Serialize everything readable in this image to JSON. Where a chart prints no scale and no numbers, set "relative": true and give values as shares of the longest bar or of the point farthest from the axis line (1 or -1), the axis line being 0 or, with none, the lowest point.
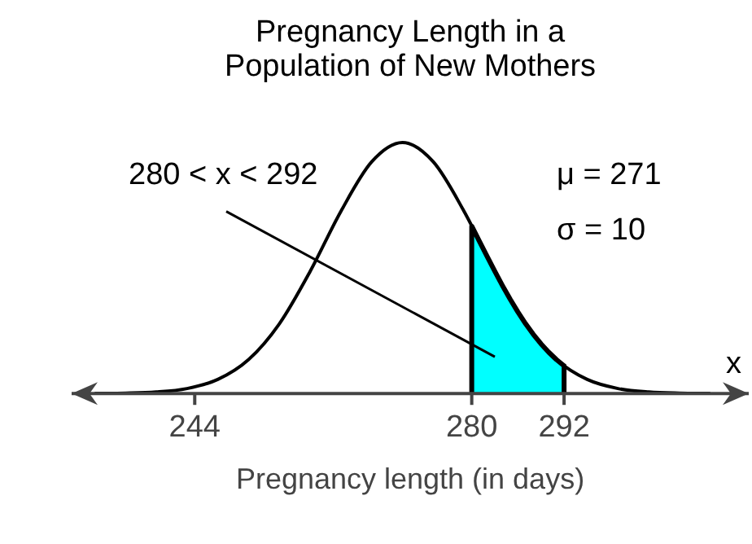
{
  "chart_data": {
    "type": "line",
    "title": [
      "Pregnancy Length in a",
      "Population of New Mothers"
    ],
    "xlabel": "Pregnancy length (in days)",
    "relative": true,
    "xlim": [
      228,
      316
    ],
    "xticks": [
      244,
      280,
      292
    ],
    "grid": false,
    "legend": false,
    "marker": "none",
    "tick_labels": "x",
    "series": [
      {
        "type": "area",
        "color": "#00ffff",
        "x": [
          280,
          281,
          282,
          283,
          284,
          285,
          286,
          287,
          288,
          289,
          290,
          291,
          292
        ],
        "values": [
          0.667,
          0.6065,
          0.5461,
          0.4868,
          0.4296,
          0.3753,
          0.3247,
          0.278,
          0.2357,
          0.1979,
          0.1645,
          0.1353,
          0.1103
        ]
      },
      {
        "color": "#000000",
        "x": [
          231,
          235,
          239,
          243,
          247,
          251,
          255,
          259,
          263,
          267,
          271,
          275,
          279,
          283,
          287,
          291,
          295,
          299,
          303,
          307,
          311
        ],
        "values": [
          0.0003,
          0.0015,
          0.006,
          0.0198,
          0.0561,
          0.1353,
          0.278,
          0.4868,
          0.7261,
          0.9231,
          1,
          0.9231,
          0.7261,
          0.4868,
          0.278,
          0.1353,
          0.0561,
          0.0198,
          0.006,
          0.0015,
          0.0003
        ]
      }
    ],
    "annotations": [
      "280 < x < 292",
      "μ = 271",
      "σ = 10",
      "x"
    ]
  }
}
